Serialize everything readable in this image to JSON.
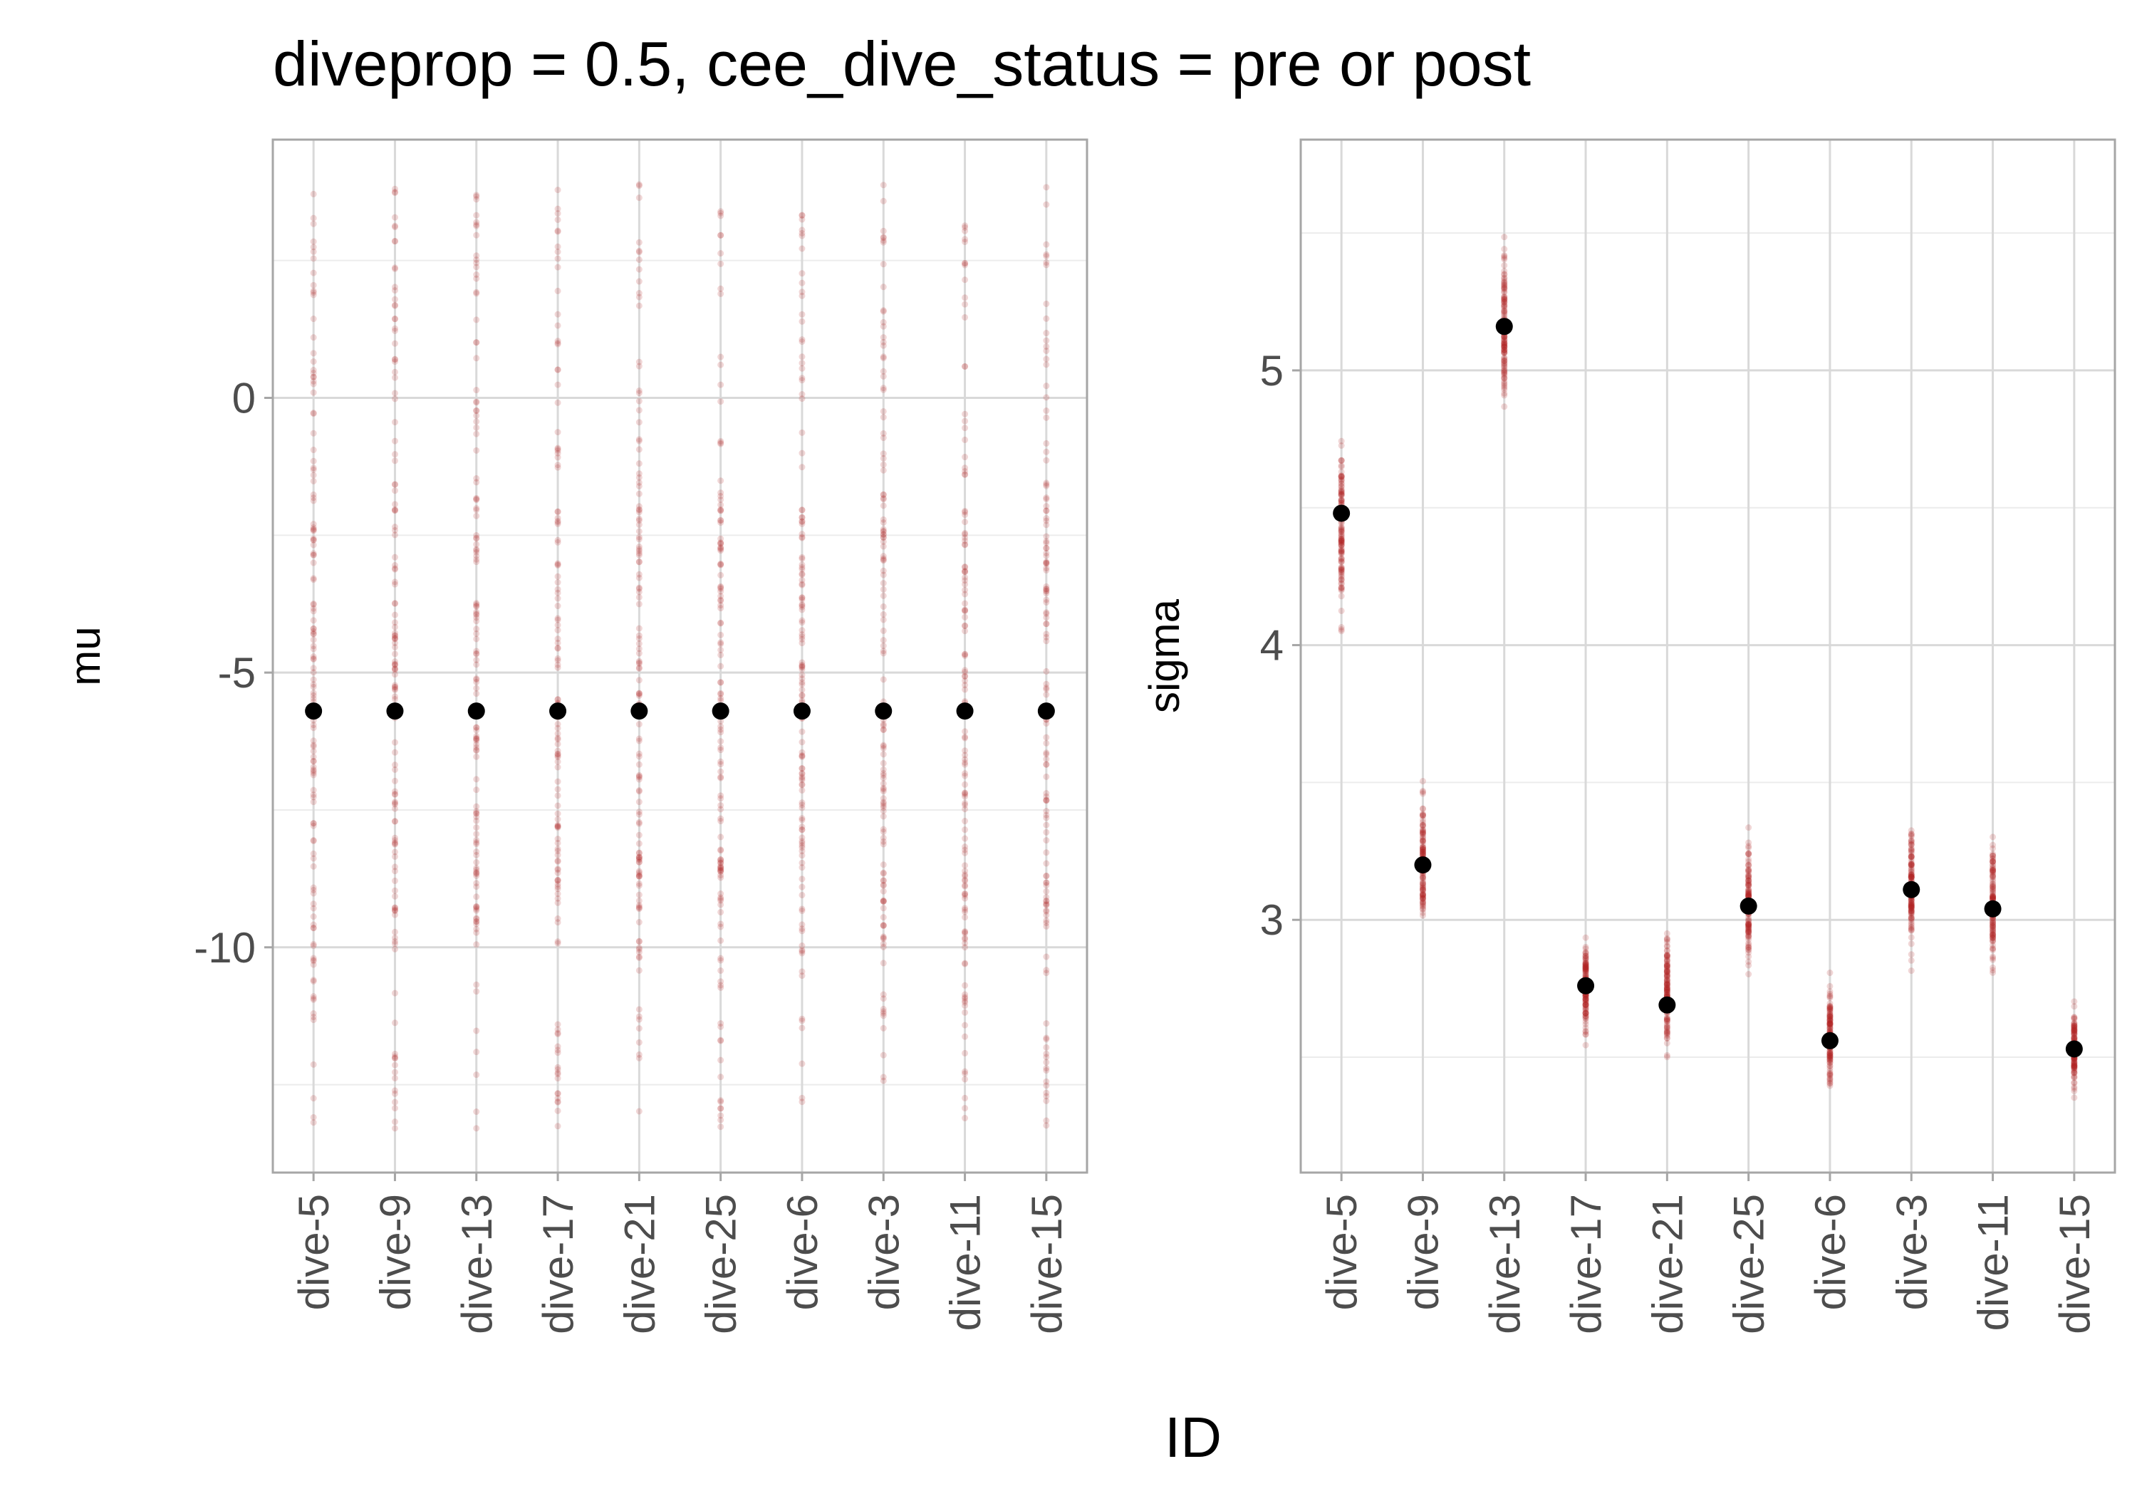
{
  "title": "diveprop = 0.5, cee_dive_status = pre or post",
  "shared_xlabel": "ID",
  "colors": {
    "draws": "#b22222",
    "point": "#000000",
    "grid_major": "#d9d9d9",
    "grid_minor": "#ececec",
    "panel_border": "#a6a6a6",
    "tick_text": "#4d4d4d"
  },
  "chart_data": [
    {
      "type": "scatter",
      "categories": [
        "dive-5",
        "dive-9",
        "dive-13",
        "dive-17",
        "dive-21",
        "dive-25",
        "dive-6",
        "dive-3",
        "dive-11",
        "dive-15"
      ],
      "xlabel": "",
      "ylabel": "mu",
      "ylim": [
        -14.1,
        4.7
      ],
      "yticks": [
        0,
        -5,
        -10
      ],
      "ytick_labels": [
        "0",
        "-5",
        "-10"
      ],
      "grid": true,
      "series": [
        {
          "values": [
            -5.7,
            -5.7,
            -5.7,
            -5.7,
            -5.7,
            -5.7,
            -5.7,
            -5.7,
            -5.7,
            -5.7
          ]
        }
      ],
      "draws_range": [
        -13.3,
        3.9
      ]
    },
    {
      "type": "scatter",
      "categories": [
        "dive-5",
        "dive-9",
        "dive-13",
        "dive-17",
        "dive-21",
        "dive-25",
        "dive-6",
        "dive-3",
        "dive-11",
        "dive-15"
      ],
      "xlabel": "",
      "ylabel": "sigma",
      "ylim": [
        2.08,
        5.84
      ],
      "yticks": [
        5,
        4,
        3
      ],
      "ytick_labels": [
        "5",
        "4",
        "3"
      ],
      "grid": true,
      "series": [
        {
          "values": [
            4.48,
            3.2,
            5.16,
            2.76,
            2.69,
            3.05,
            2.56,
            3.11,
            3.04,
            2.53
          ]
        }
      ],
      "draws_range": [
        [
          3.76,
          4.99
        ],
        [
          2.76,
          3.69
        ],
        [
          4.56,
          5.66
        ],
        [
          2.37,
          3.1
        ],
        [
          2.37,
          3.15
        ],
        [
          2.62,
          3.48
        ],
        [
          2.23,
          2.97
        ],
        [
          2.69,
          3.56
        ],
        [
          2.6,
          3.54
        ],
        [
          2.23,
          2.84
        ]
      ]
    }
  ]
}
